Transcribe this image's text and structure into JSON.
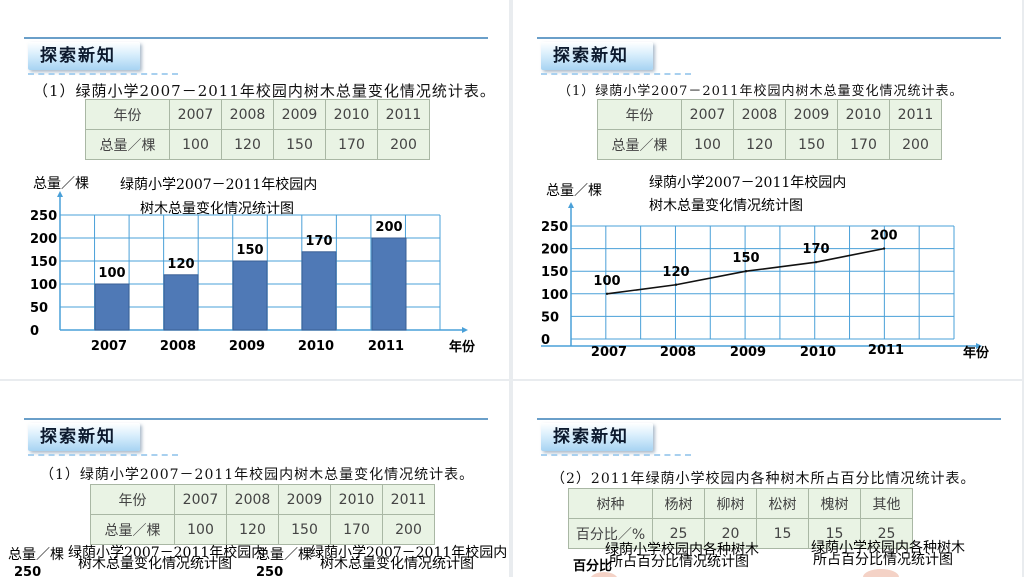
{
  "badge": "探索新知",
  "heading1": "（1）绿荫小学2007－2011年校园内树木总量变化情况统计表。",
  "heading2": "（2）2011年绿荫小学校园内各种树木所占百分比情况统计表。",
  "table1": {
    "row1_label": "年份",
    "row2_label": "总量／棵",
    "years": [
      "2007",
      "2008",
      "2009",
      "2010",
      "2011"
    ],
    "values": [
      "100",
      "120",
      "150",
      "170",
      "200"
    ]
  },
  "table2": {
    "row1_label": "树种",
    "row2_label": "百分比／%",
    "kinds": [
      "杨树",
      "柳树",
      "松树",
      "槐树",
      "其他"
    ],
    "values": [
      "25",
      "20",
      "15",
      "15",
      "25"
    ]
  },
  "chart_common": {
    "ylabel": "总量／棵",
    "xlabel": "年份",
    "title_line1": "绿荫小学2007－2011年校园内",
    "title_line2": "树木总量变化情况统计图",
    "yticks": [
      "250",
      "200",
      "150",
      "100",
      "50",
      "0"
    ]
  },
  "small_charts": {
    "ylabel": "总量／棵",
    "title_line1": "绿荫小学2007－2011年校园内",
    "title_line2": "树木总量变化情况统计图",
    "ytick_top": "250"
  },
  "pie_captions": {
    "ylabel": "百分比",
    "left_line1": "绿荫小学校园内各种树木",
    "left_line2": "所占百分比情况统计图",
    "right_line1": "绿荫小学校园内各种树木",
    "right_line2": "所占百分比情况统计图"
  },
  "chart_data": [
    {
      "type": "bar",
      "title": "绿荫小学2007－2011年校园内树木总量变化情况统计图",
      "categories": [
        "2007",
        "2008",
        "2009",
        "2010",
        "2011"
      ],
      "values": [
        100,
        120,
        150,
        170,
        200
      ],
      "xlabel": "年份",
      "ylabel": "总量／棵",
      "ylim": [
        0,
        250
      ],
      "grid": true
    },
    {
      "type": "line",
      "title": "绿荫小学2007－2011年校园内树木总量变化情况统计图",
      "categories": [
        "2007",
        "2008",
        "2009",
        "2010",
        "2011"
      ],
      "values": [
        100,
        120,
        150,
        170,
        200
      ],
      "xlabel": "年份",
      "ylabel": "总量／棵",
      "ylim": [
        0,
        250
      ],
      "grid": true
    }
  ],
  "colors": {
    "bar": "#4f79b6",
    "grid": "#4aa0d8",
    "badge": "#bfe1f7"
  }
}
